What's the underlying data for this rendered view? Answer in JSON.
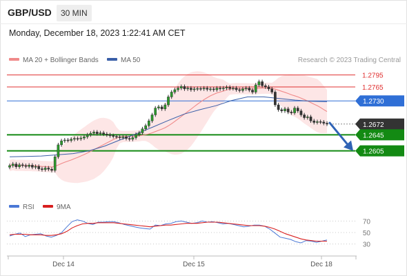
{
  "header": {
    "symbol": "GBP/USD",
    "timeframe": "30 MIN",
    "datetime": "Monday, December 18, 2023 1:22:41 AM CET"
  },
  "chart_data": [
    {
      "type": "candlestick",
      "legend": [
        {
          "name": "MA 20 + Bollinger Bands",
          "color": "#f08a8a"
        },
        {
          "name": "MA 50",
          "color": "#3a5fa8"
        }
      ],
      "attribution": "Research © 2023 Trading Central",
      "ylim": [
        1.253,
        1.2815
      ],
      "x_ticks": [
        "Dec 14",
        "Dec 15",
        "Dec 18"
      ],
      "levels": [
        {
          "label": "1.2795",
          "value": 1.2795,
          "kind": "resistance",
          "color": "#e03030"
        },
        {
          "label": "1.2765",
          "value": 1.2765,
          "kind": "resistance",
          "color": "#e03030"
        },
        {
          "label": "1.2730",
          "value": 1.273,
          "kind": "pivot",
          "color": "#2f6fd6"
        },
        {
          "label": "1.2672",
          "value": 1.2672,
          "kind": "last",
          "color": "#333333"
        },
        {
          "label": "1.2645",
          "value": 1.2645,
          "kind": "support",
          "color": "#138a13"
        },
        {
          "label": "1.2605",
          "value": 1.2605,
          "kind": "support",
          "color": "#138a13"
        }
      ],
      "closes": [
        1.2568,
        1.2572,
        1.2565,
        1.257,
        1.2568,
        1.2566,
        1.2569,
        1.2564,
        1.2566,
        1.256,
        1.2558,
        1.2562,
        1.2559,
        1.2556,
        1.259,
        1.262,
        1.263,
        1.2632,
        1.2631,
        1.2634,
        1.2636,
        1.2635,
        1.2637,
        1.264,
        1.2645,
        1.2649,
        1.2652,
        1.2648,
        1.265,
        1.2647,
        1.2645,
        1.2643,
        1.2641,
        1.264,
        1.2638,
        1.264,
        1.2636,
        1.2634,
        1.2638,
        1.2646,
        1.265,
        1.266,
        1.2668,
        1.268,
        1.2695,
        1.2712,
        1.2715,
        1.271,
        1.272,
        1.274,
        1.2752,
        1.2758,
        1.2762,
        1.2766,
        1.276,
        1.2762,
        1.2758,
        1.276,
        1.2761,
        1.276,
        1.2762,
        1.2759,
        1.276,
        1.2758,
        1.2762,
        1.276,
        1.2762,
        1.2764,
        1.2761,
        1.2762,
        1.2758,
        1.2756,
        1.276,
        1.2762,
        1.2757,
        1.2752,
        1.277,
        1.2778,
        1.2768,
        1.2765,
        1.276,
        1.2752,
        1.272,
        1.2708,
        1.2705,
        1.271,
        1.2702,
        1.27,
        1.2712,
        1.2705,
        1.2695,
        1.2688,
        1.269,
        1.268,
        1.2676,
        1.2678,
        1.2677,
        1.2674,
        1.2672
      ],
      "ma50": [
        1.259,
        1.2591,
        1.2592,
        1.2595,
        1.2598,
        1.2605,
        1.2617,
        1.2633,
        1.2648,
        1.2664,
        1.2681,
        1.2697,
        1.2708,
        1.2718,
        1.2731,
        1.274,
        1.274,
        1.2736,
        1.2732,
        1.2729,
        1.2728
      ],
      "arrow": {
        "from": 1.2675,
        "to": 1.2612,
        "direction": "down"
      }
    },
    {
      "type": "line",
      "series": [
        {
          "name": "RSI",
          "color": "#4a78d6",
          "values": [
            44,
            47,
            49,
            43,
            46,
            47,
            48,
            44,
            42,
            45,
            50,
            60,
            69,
            72,
            70,
            66,
            64,
            68,
            68,
            69,
            69,
            67,
            64,
            62,
            60,
            58,
            57,
            56,
            63,
            62,
            65,
            66,
            69,
            70,
            68,
            66,
            67,
            70,
            68,
            69,
            67,
            65,
            66,
            64,
            62,
            60,
            61,
            63,
            63,
            61,
            56,
            49,
            42,
            40,
            38,
            34,
            32,
            36,
            35,
            33,
            35,
            37
          ]
        },
        {
          "name": "9MA",
          "color": "#d81f1f",
          "values": [
            46,
            47,
            47,
            47,
            46,
            46,
            46,
            45,
            45,
            46,
            48,
            52,
            58,
            62,
            65,
            66,
            66,
            67,
            67,
            67,
            67,
            66,
            65,
            64,
            63,
            62,
            61,
            60,
            61,
            62,
            63,
            63,
            64,
            65,
            66,
            66,
            66,
            67,
            68,
            68,
            68,
            67,
            66,
            65,
            64,
            63,
            62,
            62,
            62,
            61,
            59,
            56,
            52,
            48,
            45,
            42,
            39,
            37,
            36,
            35,
            35,
            35
          ]
        }
      ],
      "ylim": [
        20,
        80
      ],
      "y_ticks": [
        "70",
        "50",
        "30"
      ]
    }
  ]
}
